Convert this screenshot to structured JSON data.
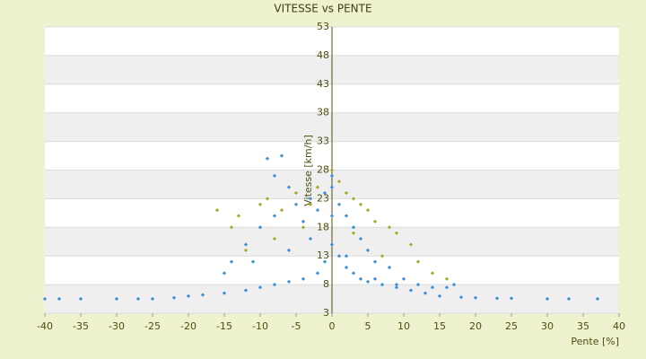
{
  "chart_data": {
    "type": "scatter",
    "title": "VITESSE vs PENTE",
    "x_label": "Pente [%]",
    "y_label": "Vitesse [km/h]",
    "xlim": [
      -40,
      40
    ],
    "xticks": [
      -40,
      -35,
      -30,
      -25,
      -20,
      -15,
      -10,
      -5,
      0,
      5,
      10,
      15,
      20,
      25,
      30,
      35,
      40
    ],
    "ylim": [
      3,
      53
    ],
    "yticks": [
      53,
      48,
      43,
      38,
      33,
      28,
      23,
      18,
      13,
      8,
      3
    ],
    "grid": true,
    "series": [
      {
        "color": "#3b8ed8",
        "x": [
          -40,
          -38,
          -35,
          -30,
          -27,
          -25,
          -22,
          -20,
          -18,
          -15,
          -12,
          -10,
          -8,
          -6,
          -4,
          -2,
          -1,
          0,
          0,
          0,
          0,
          1,
          2,
          3,
          4,
          5,
          7,
          9,
          11,
          13,
          15,
          18,
          20,
          23,
          25,
          30,
          33,
          37,
          -9,
          -7,
          -8,
          -6,
          -5,
          -10,
          -12,
          -14,
          -15,
          -11,
          -8,
          -4,
          -3,
          -2,
          -1,
          1,
          2,
          3,
          4,
          5,
          6,
          8,
          10,
          12,
          14,
          16,
          17,
          -6,
          -3,
          2,
          6,
          9
        ],
        "values": [
          5.5,
          5.5,
          5.5,
          5.5,
          5.5,
          5.5,
          5.7,
          6,
          6.2,
          6.5,
          7,
          7.5,
          8,
          8.5,
          9,
          10,
          12,
          15,
          20,
          25,
          27,
          13,
          11,
          10,
          9,
          8.5,
          8,
          7.5,
          7,
          6.5,
          6,
          5.8,
          5.7,
          5.6,
          5.6,
          5.5,
          5.5,
          5.5,
          30,
          30.5,
          27,
          25,
          22,
          18,
          15,
          12,
          10,
          12,
          20,
          19,
          23,
          21,
          24,
          22,
          20,
          18,
          16,
          14,
          12,
          11,
          9,
          8,
          7.5,
          7.5,
          8,
          14,
          16,
          13,
          9,
          8
        ]
      },
      {
        "color": "#a9a82a",
        "x": [
          -16,
          -14,
          -13,
          -10,
          -9,
          -7,
          -5,
          -3,
          -2,
          0,
          1,
          2,
          3,
          4,
          5,
          6,
          8,
          9,
          11,
          12,
          14,
          16,
          -12,
          -8,
          -4,
          3,
          7
        ],
        "values": [
          21,
          18,
          20,
          22,
          23,
          21,
          24,
          22,
          25,
          28,
          26,
          24,
          23,
          22,
          21,
          19,
          18,
          17,
          15,
          12,
          10,
          9,
          14,
          16,
          18,
          17,
          13
        ]
      }
    ]
  }
}
